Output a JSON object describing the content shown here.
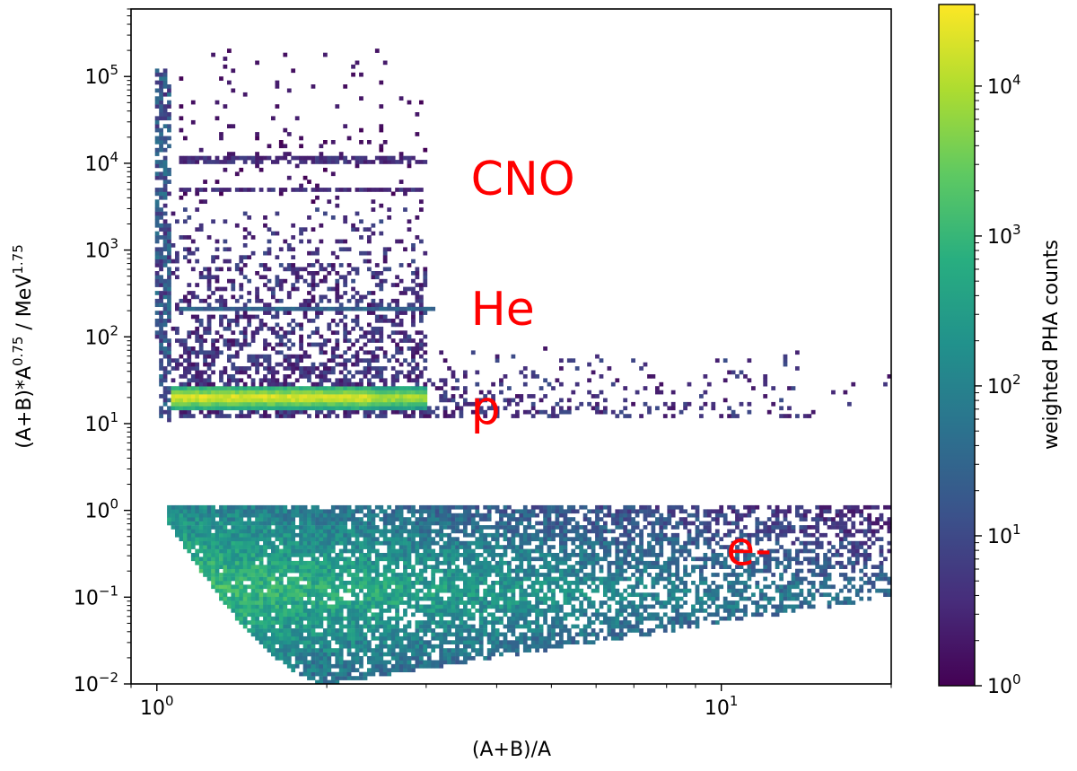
{
  "chart_data": {
    "type": "heatmap",
    "title": "",
    "xlabel": "(A+B)/A",
    "ylabel": {
      "base": "(A+B)*A",
      "sup1": "0.75",
      "mid": " / MeV",
      "sup2": "1.75"
    },
    "x_scale": "log",
    "y_scale": "log",
    "xlim": [
      0.9,
      20.0
    ],
    "ylim": [
      0.01,
      600000
    ],
    "x_ticks": [
      {
        "value": 1,
        "base": "10",
        "exp": "0"
      },
      {
        "value": 10,
        "base": "10",
        "exp": "1"
      }
    ],
    "y_ticks": [
      {
        "value": 0.01,
        "base": "10",
        "exp": "−2"
      },
      {
        "value": 0.1,
        "base": "10",
        "exp": "−1"
      },
      {
        "value": 1,
        "base": "10",
        "exp": "0"
      },
      {
        "value": 10,
        "base": "10",
        "exp": "1"
      },
      {
        "value": 100,
        "base": "10",
        "exp": "2"
      },
      {
        "value": 1000,
        "base": "10",
        "exp": "3"
      },
      {
        "value": 10000,
        "base": "10",
        "exp": "4"
      },
      {
        "value": 100000,
        "base": "10",
        "exp": "5"
      }
    ],
    "colorbar": {
      "label": "weighted PHA counts",
      "scale": "log",
      "colormap": "viridis",
      "range": [
        1,
        35000
      ],
      "ticks": [
        {
          "value": 1,
          "base": "10",
          "exp": "0"
        },
        {
          "value": 10,
          "base": "10",
          "exp": "1"
        },
        {
          "value": 100,
          "base": "10",
          "exp": "2"
        },
        {
          "value": 1000,
          "base": "10",
          "exp": "3"
        },
        {
          "value": 10000,
          "base": "10",
          "exp": "4"
        }
      ]
    },
    "annotations": [
      {
        "text": "CNO",
        "x": 3.6,
        "y": 7000,
        "color": "#ff0000"
      },
      {
        "text": "He",
        "x": 3.6,
        "y": 220,
        "color": "#ff0000"
      },
      {
        "text": "p",
        "x": 3.6,
        "y": 16,
        "color": "#ff0000"
      },
      {
        "text": "e-",
        "x": 10.2,
        "y": 0.38,
        "color": "#ff0000"
      }
    ],
    "grid": false,
    "legend": "none",
    "populations": [
      {
        "label": "CNO",
        "x_range": [
          1.1,
          3.0
        ],
        "y_bands": [
          5000,
          11000
        ],
        "y_range": [
          2500,
          200000
        ],
        "typical_counts": 1
      },
      {
        "label": "He",
        "x_range": [
          1.1,
          3.1
        ],
        "y_track": 210,
        "y_range": [
          60,
          1500
        ],
        "typical_counts": 10
      },
      {
        "label": "p",
        "x_range": [
          1.05,
          3.0
        ],
        "y_track": 20,
        "typical_counts": 20000
      },
      {
        "label": "e-",
        "x_range": [
          1.05,
          20.0
        ],
        "y_range": [
          0.01,
          1.1
        ],
        "typical_counts": 300
      },
      {
        "label": "",
        "x_range": [
          1.0,
          1.05
        ],
        "y_range": [
          12,
          120000
        ],
        "typical_counts": 3
      }
    ]
  }
}
